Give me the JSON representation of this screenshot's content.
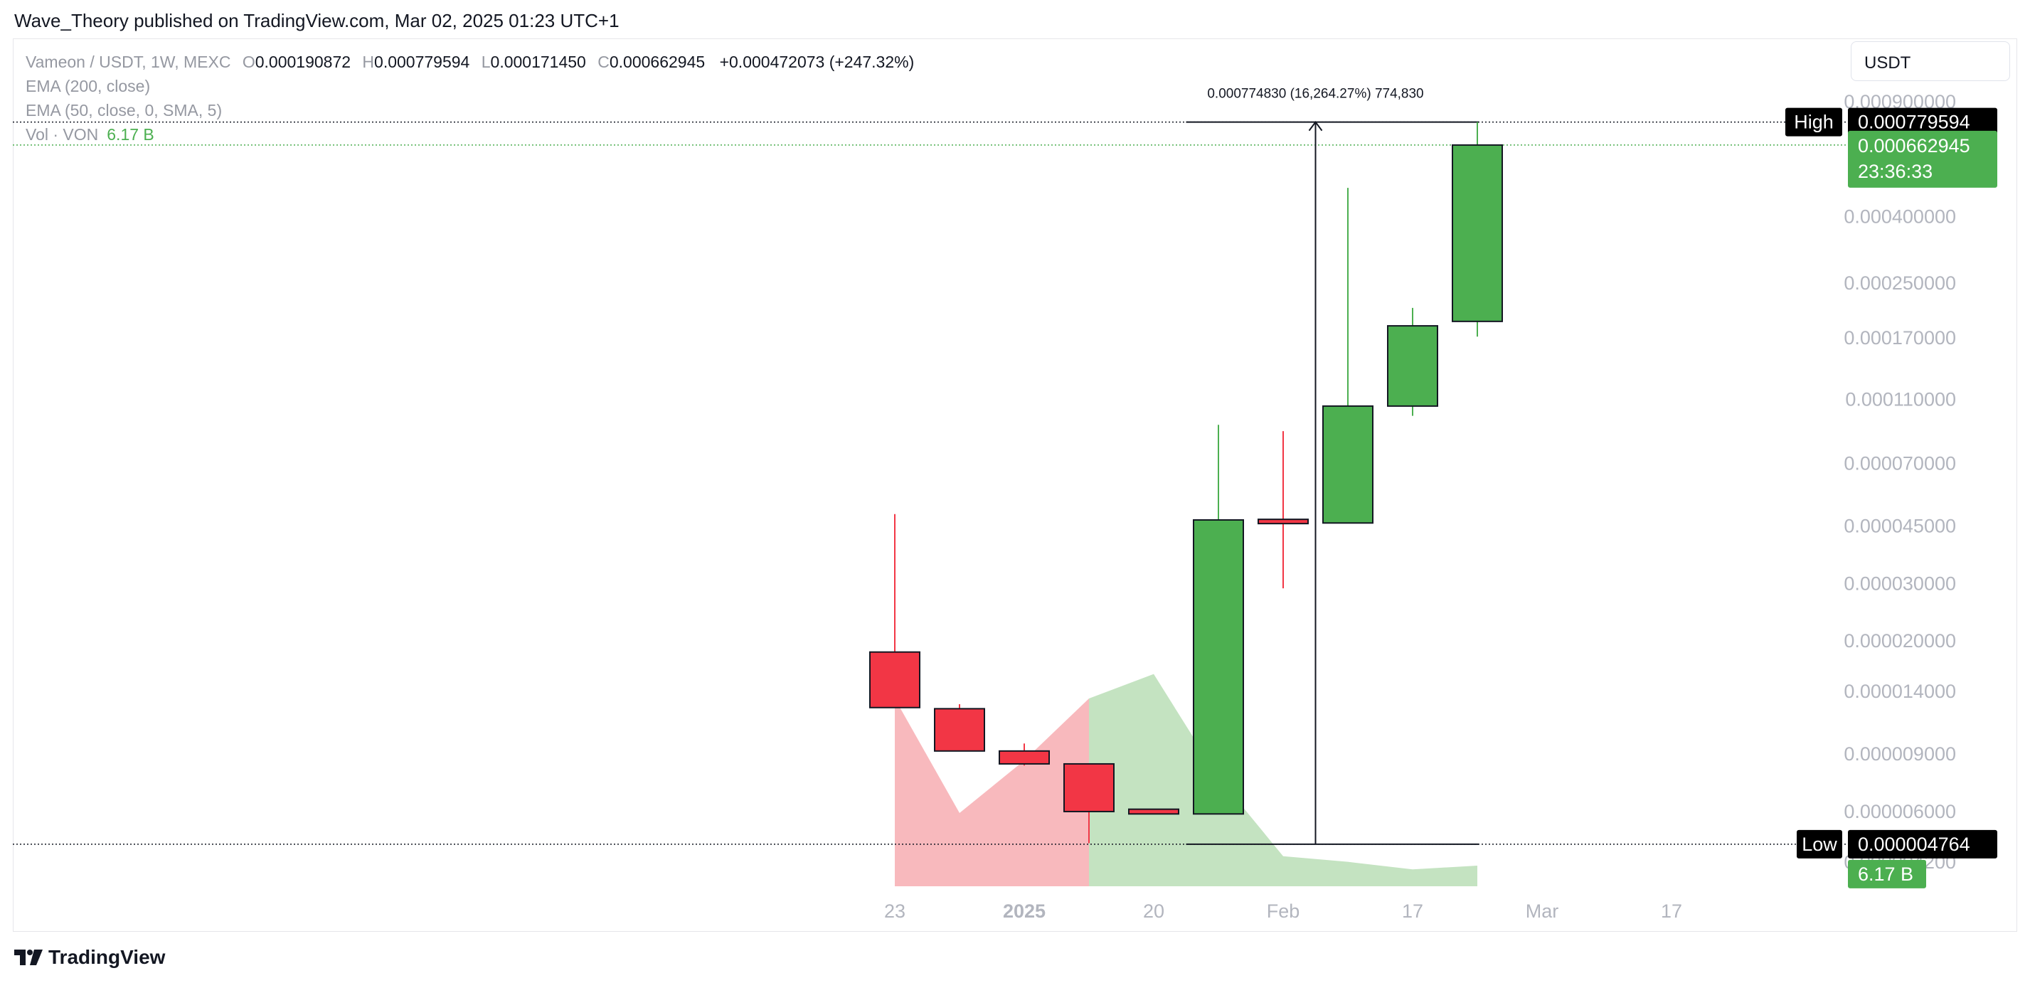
{
  "publisher_line": "Wave_Theory published on TradingView.com, Mar 02, 2025 01:23 UTC+1",
  "legend": {
    "symbol": "Vameon / USDT, 1W, MEXC",
    "o_label": "O",
    "o_value": "0.000190872",
    "h_label": "H",
    "h_value": "0.000779594",
    "l_label": "L",
    "l_value": "0.000171450",
    "c_label": "C",
    "c_value": "0.000662945",
    "change": "+0.000472073 (+247.32%)",
    "ema200": "EMA (200, close)",
    "ema50": "EMA (50, close, 0, SMA, 5)",
    "vol_label": "Vol · VON",
    "vol_value": "6.17 B"
  },
  "currency_button": "USDT",
  "footer_brand": "TradingView",
  "colors": {
    "up": "#4caf50",
    "down": "#f23645",
    "vol_up": "#c4e3c1",
    "vol_down": "#f8b9bd"
  },
  "chart_data": {
    "type": "candlestick",
    "y_scale": "log",
    "y_ticks": [
      "0.000900000",
      "0.000400000",
      "0.000250000",
      "0.000170000",
      "0.000110000",
      "0.000070000",
      "0.000045000",
      "0.000030000",
      "0.000020000",
      "0.000014000",
      "0.000009000",
      "0.000006000",
      "0.000004200"
    ],
    "x_ticks": [
      {
        "label": "23",
        "week": 0,
        "bold": false
      },
      {
        "label": "2025",
        "week": 2,
        "bold": true
      },
      {
        "label": "20",
        "week": 4,
        "bold": false
      },
      {
        "label": "Feb",
        "week": 6,
        "bold": false
      },
      {
        "label": "17",
        "week": 8,
        "bold": false
      },
      {
        "label": "Mar",
        "week": 10,
        "bold": false
      },
      {
        "label": "17",
        "week": 12,
        "bold": false
      }
    ],
    "candles": [
      {
        "o": 1.85e-05,
        "h": 4.9e-05,
        "l": 1.25e-05,
        "c": 1.25e-05
      },
      {
        "o": 1.24e-05,
        "h": 1.28e-05,
        "l": 9.2e-06,
        "c": 9.2e-06
      },
      {
        "o": 9.2e-06,
        "h": 9.7e-06,
        "l": 8.3e-06,
        "c": 8.4e-06
      },
      {
        "o": 8.4e-06,
        "h": 8.4e-06,
        "l": 4.8e-06,
        "c": 6e-06
      },
      {
        "o": 6.1e-06,
        "h": 6.1e-06,
        "l": 5.9e-06,
        "c": 5.9e-06
      },
      {
        "o": 5.9e-06,
        "h": 9.2e-05,
        "l": 5.9e-06,
        "c": 4.7e-05
      },
      {
        "o": 4.7e-05,
        "h": 8.8e-05,
        "l": 2.9e-05,
        "c": 4.6e-05
      },
      {
        "o": 4.6e-05,
        "h": 0.00049,
        "l": 4.6e-05,
        "c": 0.000105
      },
      {
        "o": 0.000105,
        "h": 0.00021,
        "l": 9.8e-05,
        "c": 0.000185
      },
      {
        "o": 0.000190872,
        "h": 0.000779594,
        "l": 0.00017145,
        "c": 0.000662945
      }
    ],
    "volume_relative": [
      1.0,
      0.39,
      0.67,
      1.0,
      1.13,
      0.58,
      0.16,
      0.13,
      0.09,
      0.11
    ],
    "volume_up": [
      false,
      false,
      false,
      false,
      true,
      true,
      true,
      true,
      true,
      true
    ],
    "high_label": "High",
    "high_value": "0.000779594",
    "low_label": "Low",
    "low_value": "0.000004764",
    "last_price": "0.000662945",
    "countdown": "23:36:33",
    "last_volume": "6.17 B",
    "measure_text": "0.000774830 (16,264.27%) 774,830",
    "measure_from": 4.764e-06,
    "measure_to": 0.000779594
  }
}
